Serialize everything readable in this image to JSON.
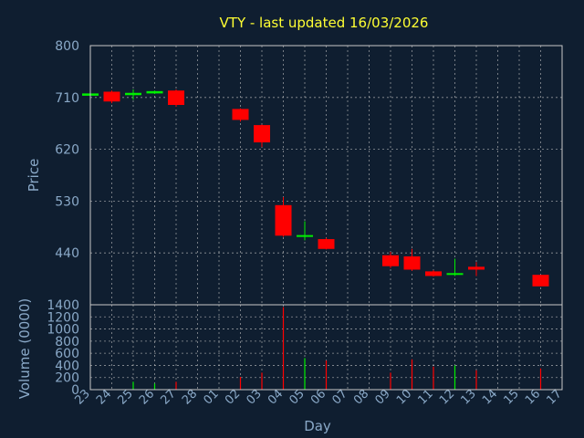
{
  "chart_data": {
    "type": "candlestick",
    "title": "VTY - last updated 16/03/2026",
    "price_axis": {
      "label": "Price",
      "ylim": [
        350,
        800
      ],
      "ticks": [
        440,
        530,
        620,
        710,
        800
      ]
    },
    "volume_axis": {
      "label": "Volume (0000)",
      "ylim": [
        0,
        1400
      ],
      "ticks": [
        0,
        200,
        400,
        600,
        800,
        1000,
        1200,
        1400
      ]
    },
    "xlabel": "Day",
    "x_ticks": [
      "23",
      "24",
      "25",
      "26",
      "27",
      "28",
      "01",
      "02",
      "03",
      "04",
      "05",
      "06",
      "07",
      "08",
      "09",
      "10",
      "11",
      "12",
      "13",
      "14",
      "15",
      "16",
      "17"
    ],
    "grid": true,
    "candles": [
      {
        "day": "23",
        "open": 713,
        "close": 717,
        "high": 718,
        "low": 712,
        "volume": 0
      },
      {
        "day": "24",
        "open": 720,
        "close": 703,
        "high": 722,
        "low": 700,
        "volume": 0
      },
      {
        "day": "25",
        "open": 714,
        "close": 718,
        "high": 724,
        "low": 706,
        "volume": 130
      },
      {
        "day": "26",
        "open": 717,
        "close": 721,
        "high": 722,
        "low": 716,
        "volume": 100
      },
      {
        "day": "27",
        "open": 722,
        "close": 697,
        "high": 724,
        "low": 694,
        "volume": 130
      },
      {
        "day": "02",
        "open": 690,
        "close": 671,
        "high": 691,
        "low": 668,
        "volume": 210
      },
      {
        "day": "03",
        "open": 662,
        "close": 632,
        "high": 663,
        "low": 624,
        "volume": 280
      },
      {
        "day": "04",
        "open": 523,
        "close": 470,
        "high": 537,
        "low": 468,
        "volume": 1360
      },
      {
        "day": "05",
        "open": 468,
        "close": 471,
        "high": 495,
        "low": 462,
        "volume": 520
      },
      {
        "day": "06",
        "open": 464,
        "close": 447,
        "high": 466,
        "low": 446,
        "volume": 480
      },
      {
        "day": "09",
        "open": 436,
        "close": 417,
        "high": 442,
        "low": 414,
        "volume": 280
      },
      {
        "day": "10",
        "open": 434,
        "close": 411,
        "high": 447,
        "low": 409,
        "volume": 500
      },
      {
        "day": "11",
        "open": 408,
        "close": 400,
        "high": 410,
        "low": 399,
        "volume": 380
      },
      {
        "day": "12",
        "open": 402,
        "close": 405,
        "high": 430,
        "low": 400,
        "volume": 400
      },
      {
        "day": "13",
        "open": 416,
        "close": 411,
        "high": 424,
        "low": 400,
        "volume": 320
      },
      {
        "day": "16",
        "open": 402,
        "close": 382,
        "high": 402,
        "low": 382,
        "volume": 350
      }
    ],
    "colors": {
      "down": "#ff0000",
      "up": "#00ee00",
      "background": "#0f1e30",
      "title": "#ffff33",
      "text": "#8aa9c8"
    }
  }
}
